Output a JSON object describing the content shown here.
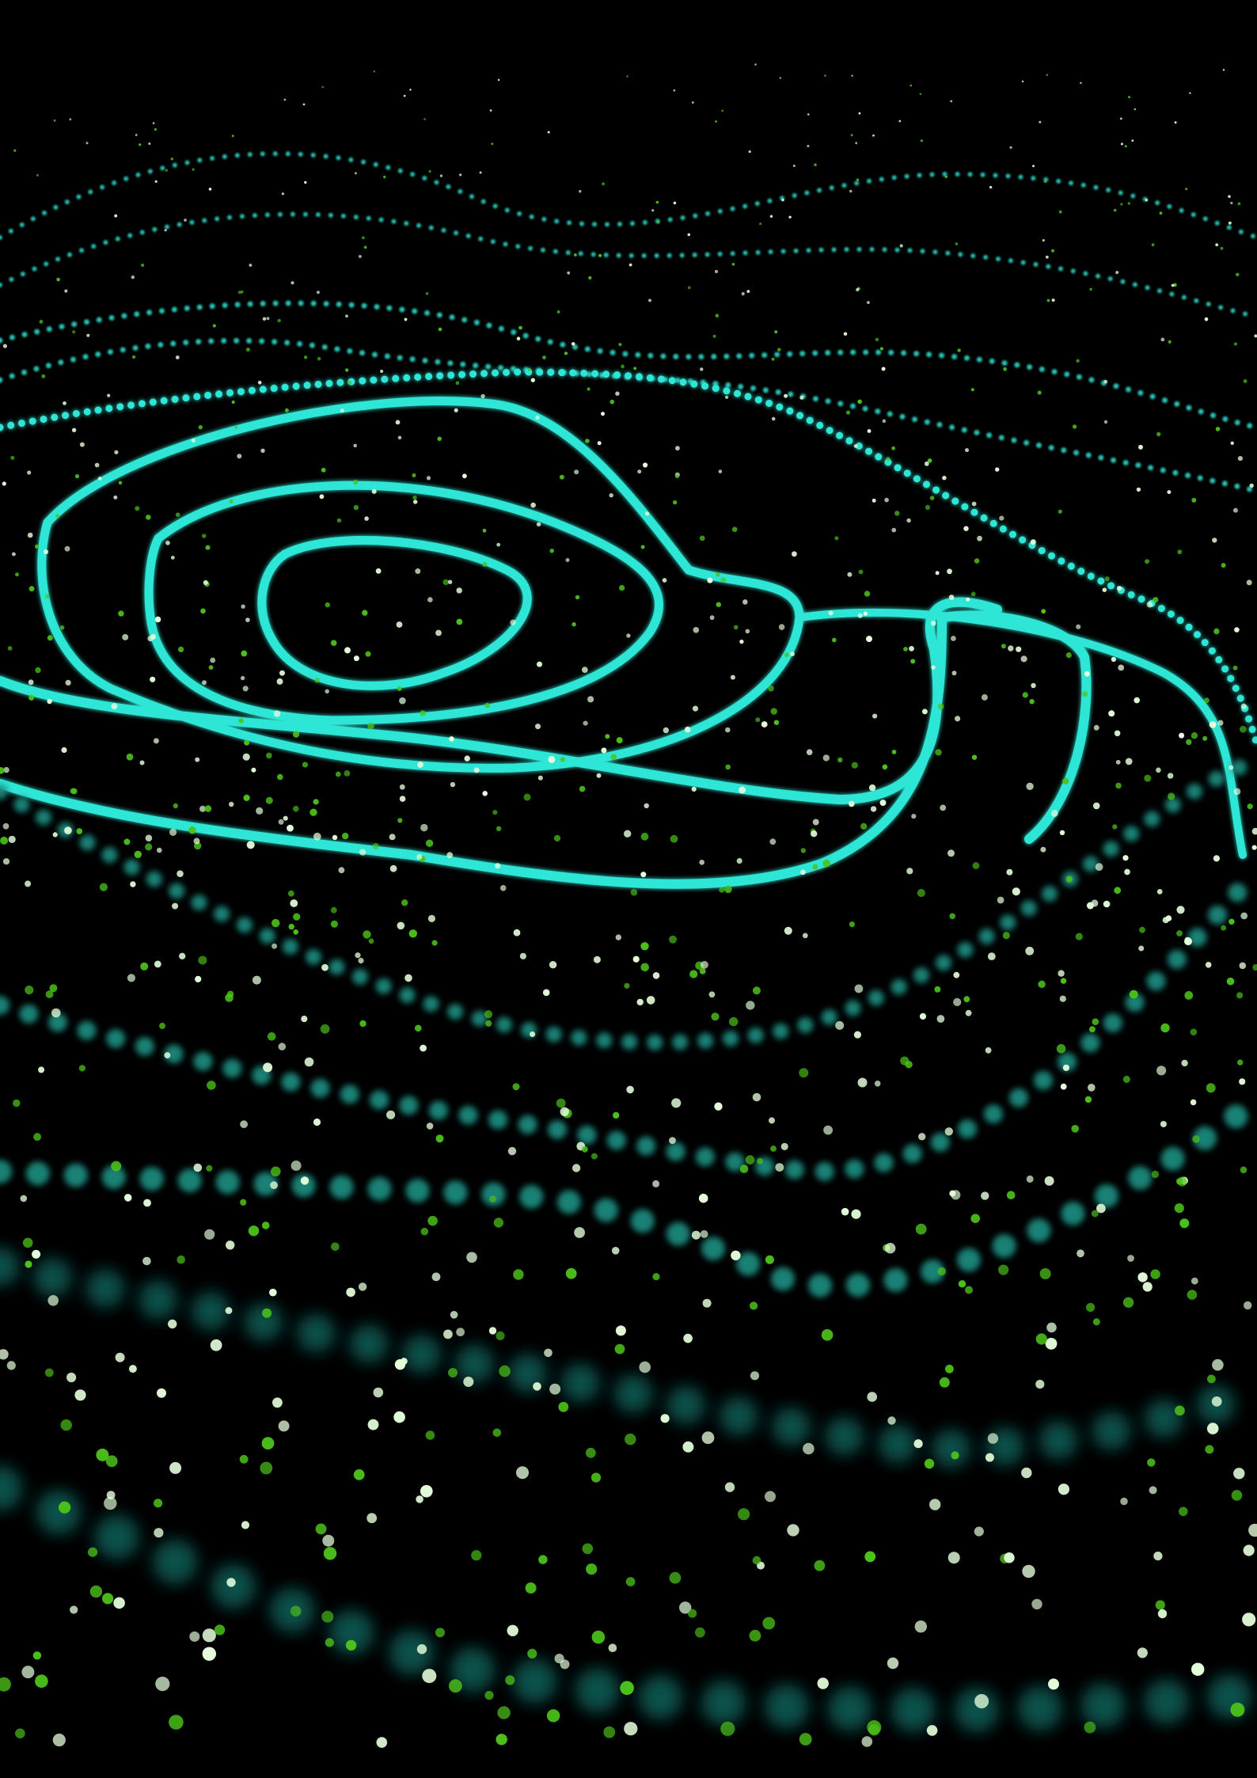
{
  "image": {
    "background_color": "#000000",
    "contour_color": "#2ee6d6",
    "dot_colors": [
      "#e6ffdc",
      "#4cc21a"
    ]
  }
}
